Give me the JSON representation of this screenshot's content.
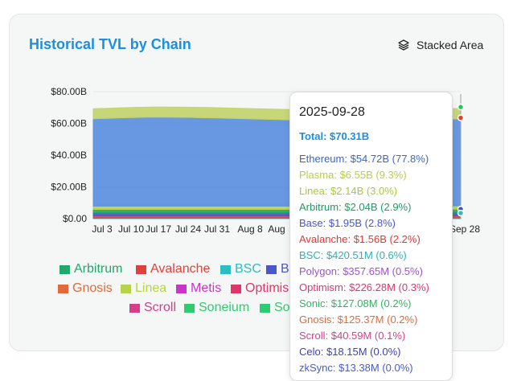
{
  "card": {
    "title": "Historical TVL by Chain",
    "view_toggle_label": "Stacked Area",
    "view_toggle_icon": "layers-icon"
  },
  "chart_data": {
    "type": "area",
    "stacked": true,
    "title": "",
    "xlabel": "",
    "ylabel": "",
    "ylim": [
      0,
      80
    ],
    "y_unit": "billions USD",
    "y_tick_values": [
      0,
      20,
      40,
      60,
      80
    ],
    "y_tick_labels": [
      "$0.00",
      "$20.00B",
      "$40.00B",
      "$60.00B",
      "$80.00B"
    ],
    "x_tick_labels": [
      "Jul 3",
      "Jul 10",
      "Jul 17",
      "Jul 24",
      "Jul 31",
      "Aug 8",
      "Aug",
      "Sep 28"
    ],
    "x": [
      "2025-07-01",
      "2025-07-15",
      "2025-08-01",
      "2025-08-15",
      "2025-09-01",
      "2025-09-15",
      "2025-09-28"
    ],
    "grid": true,
    "legend_position": "bottom",
    "series": [
      {
        "name": "Ethereum",
        "color": "#5b8fe0",
        "values": [
          55.0,
          56.0,
          55.5,
          54.5,
          54.0,
          54.3,
          54.72
        ]
      },
      {
        "name": "Plasma",
        "color": "#c2d36a",
        "values": [
          6.3,
          6.4,
          6.5,
          6.5,
          6.5,
          6.5,
          6.55
        ]
      },
      {
        "name": "Linea",
        "color": "#b6d34a",
        "values": [
          2.1,
          2.1,
          2.1,
          2.1,
          2.1,
          2.1,
          2.14
        ]
      },
      {
        "name": "Arbitrum",
        "color": "#22a86a",
        "values": [
          2.0,
          2.0,
          2.0,
          2.0,
          2.0,
          2.0,
          2.04
        ]
      },
      {
        "name": "Base",
        "color": "#4b57c9",
        "values": [
          1.9,
          1.9,
          1.9,
          1.9,
          1.9,
          1.9,
          1.95
        ]
      },
      {
        "name": "Avalanche",
        "color": "#e0413c",
        "values": [
          1.5,
          1.5,
          1.5,
          1.5,
          1.5,
          1.5,
          1.56
        ]
      },
      {
        "name": "BSC",
        "color": "#2bbdc2",
        "values": [
          0.4,
          0.4,
          0.4,
          0.4,
          0.4,
          0.4,
          0.42
        ]
      }
    ],
    "hover_markers": [
      {
        "color": "#22c55e",
        "value": 70.31
      },
      {
        "color": "#e0413c",
        "value": 63.5
      },
      {
        "color": "#3f51b5",
        "value": 6.0
      },
      {
        "color": "#2bbdc2",
        "value": 3.5
      }
    ]
  },
  "legend": {
    "items": [
      {
        "label": "Arbitrum",
        "color": "#22a86a"
      },
      {
        "label": "Avalanche",
        "color": "#e0413c"
      },
      {
        "label": "BSC",
        "color": "#2bbdc2"
      },
      {
        "label": "B",
        "color": "#4b57c9"
      },
      {
        "label": "Gnosis",
        "color": "#e06a3c"
      },
      {
        "label": "Linea",
        "color": "#b6d34a"
      },
      {
        "label": "Metis",
        "color": "#c935c9"
      },
      {
        "label": "Optimis",
        "color": "#e0356b"
      },
      {
        "label": "Scroll",
        "color": "#d63f88"
      },
      {
        "label": "Soneium",
        "color": "#2ecc71"
      },
      {
        "label": "So",
        "color": "#2ecc71"
      }
    ]
  },
  "tooltip": {
    "date": "2025-09-28",
    "total": "Total: $70.31B",
    "rows": [
      {
        "text": "Ethereum: $54.72B (77.8%)",
        "color": "#3a66c4"
      },
      {
        "text": "Plasma: $6.55B (9.3%)",
        "color": "#bccd4a"
      },
      {
        "text": "Linea: $2.14B (3.0%)",
        "color": "#a9c93b"
      },
      {
        "text": "Arbitrum: $2.04B (2.9%)",
        "color": "#1d9c63"
      },
      {
        "text": "Base: $1.95B (2.8%)",
        "color": "#4a56c4"
      },
      {
        "text": "Avalanche: $1.56B (2.2%)",
        "color": "#dc3a35"
      },
      {
        "text": "BSC: $420.51M (0.6%)",
        "color": "#26b3bb"
      },
      {
        "text": "Polygon: $357.65M (0.5%)",
        "color": "#a24fd6"
      },
      {
        "text": "Optimism: $226.28M (0.3%)",
        "color": "#e0356b"
      },
      {
        "text": "Sonic: $127.08M (0.2%)",
        "color": "#2db564"
      },
      {
        "text": "Gnosis: $125.37M (0.2%)",
        "color": "#e06a3c"
      },
      {
        "text": "Scroll: $40.59M (0.1%)",
        "color": "#d63f88"
      },
      {
        "text": "Celo: $18.15M (0.0%)",
        "color": "#3f3fb5"
      },
      {
        "text": "zkSync: $13.38M (0.0%)",
        "color": "#4a5bd0"
      }
    ]
  }
}
